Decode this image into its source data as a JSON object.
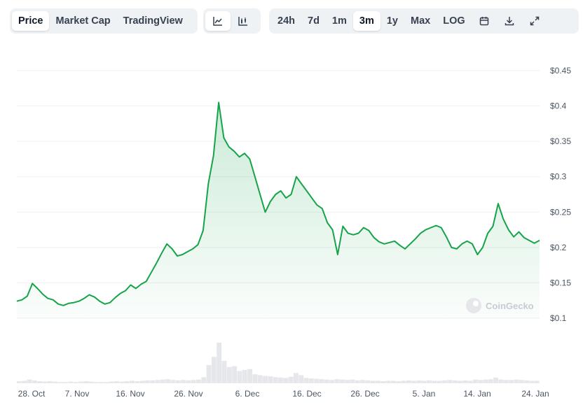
{
  "toolbar": {
    "view_tabs": [
      {
        "label": "Price",
        "active": true
      },
      {
        "label": "Market Cap",
        "active": false
      },
      {
        "label": "TradingView",
        "active": false
      }
    ],
    "chart_style_icons": [
      "line-chart-icon",
      "candlestick-chart-icon"
    ],
    "ranges": [
      {
        "label": "24h",
        "active": false
      },
      {
        "label": "7d",
        "active": false
      },
      {
        "label": "1m",
        "active": false
      },
      {
        "label": "3m",
        "active": true
      },
      {
        "label": "1y",
        "active": false
      },
      {
        "label": "Max",
        "active": false
      },
      {
        "label": "LOG",
        "active": false
      }
    ],
    "action_icons": [
      "calendar-icon",
      "download-icon",
      "expand-icon"
    ]
  },
  "watermark": "CoinGecko",
  "colors": {
    "line": "#16a34a",
    "fill_top": "#16a34a",
    "grid": "#eef0f2",
    "volume": "#e5e7eb"
  },
  "chart_data": {
    "type": "area",
    "x_ticks": [
      "28. Oct",
      "7. Nov",
      "16. Nov",
      "26. Nov",
      "6. Dec",
      "16. Dec",
      "26. Dec",
      "5. Jan",
      "14. Jan",
      "24. Jan"
    ],
    "y_ticks": [
      "$0.45",
      "$0.4",
      "$0.35",
      "$0.3",
      "$0.25",
      "$0.2",
      "$0.15",
      "$0.1"
    ],
    "ylim": [
      0.1,
      0.45
    ],
    "grid": true,
    "series": [
      {
        "values": [
          0.124,
          0.126,
          0.131,
          0.149,
          0.142,
          0.134,
          0.128,
          0.126,
          0.12,
          0.118,
          0.121,
          0.122,
          0.124,
          0.128,
          0.133,
          0.13,
          0.124,
          0.12,
          0.122,
          0.129,
          0.135,
          0.139,
          0.147,
          0.142,
          0.148,
          0.152,
          0.165,
          0.178,
          0.192,
          0.205,
          0.198,
          0.188,
          0.19,
          0.194,
          0.198,
          0.204,
          0.224,
          0.29,
          0.33,
          0.405,
          0.355,
          0.342,
          0.336,
          0.328,
          0.333,
          0.325,
          0.3,
          0.275,
          0.25,
          0.265,
          0.275,
          0.28,
          0.27,
          0.275,
          0.3,
          0.29,
          0.28,
          0.27,
          0.26,
          0.255,
          0.235,
          0.225,
          0.19,
          0.23,
          0.22,
          0.218,
          0.22,
          0.228,
          0.224,
          0.214,
          0.208,
          0.205,
          0.207,
          0.209,
          0.203,
          0.198,
          0.205,
          0.212,
          0.22,
          0.225,
          0.228,
          0.231,
          0.228,
          0.215,
          0.2,
          0.198,
          0.205,
          0.209,
          0.205,
          0.19,
          0.2,
          0.22,
          0.23,
          0.262,
          0.24,
          0.225,
          0.215,
          0.222,
          0.214,
          0.21,
          0.206,
          0.21
        ],
        "volume": [
          0.05,
          0.06,
          0.09,
          0.07,
          0.05,
          0.04,
          0.05,
          0.04,
          0.03,
          0.03,
          0.04,
          0.03,
          0.04,
          0.05,
          0.04,
          0.03,
          0.03,
          0.03,
          0.04,
          0.05,
          0.04,
          0.05,
          0.06,
          0.05,
          0.06,
          0.07,
          0.07,
          0.08,
          0.09,
          0.1,
          0.08,
          0.07,
          0.08,
          0.07,
          0.08,
          0.09,
          0.15,
          0.45,
          0.65,
          1.0,
          0.55,
          0.4,
          0.42,
          0.3,
          0.33,
          0.35,
          0.22,
          0.2,
          0.18,
          0.17,
          0.15,
          0.14,
          0.13,
          0.16,
          0.25,
          0.2,
          0.13,
          0.12,
          0.11,
          0.1,
          0.09,
          0.08,
          0.1,
          0.09,
          0.08,
          0.09,
          0.07,
          0.08,
          0.07,
          0.06,
          0.06,
          0.05,
          0.06,
          0.06,
          0.05,
          0.06,
          0.07,
          0.06,
          0.07,
          0.06,
          0.07,
          0.06,
          0.06,
          0.07,
          0.08,
          0.07,
          0.06,
          0.07,
          0.06,
          0.09,
          0.08,
          0.09,
          0.1,
          0.14,
          0.09,
          0.08,
          0.08,
          0.09,
          0.08,
          0.07,
          0.06,
          0.06
        ]
      }
    ]
  }
}
